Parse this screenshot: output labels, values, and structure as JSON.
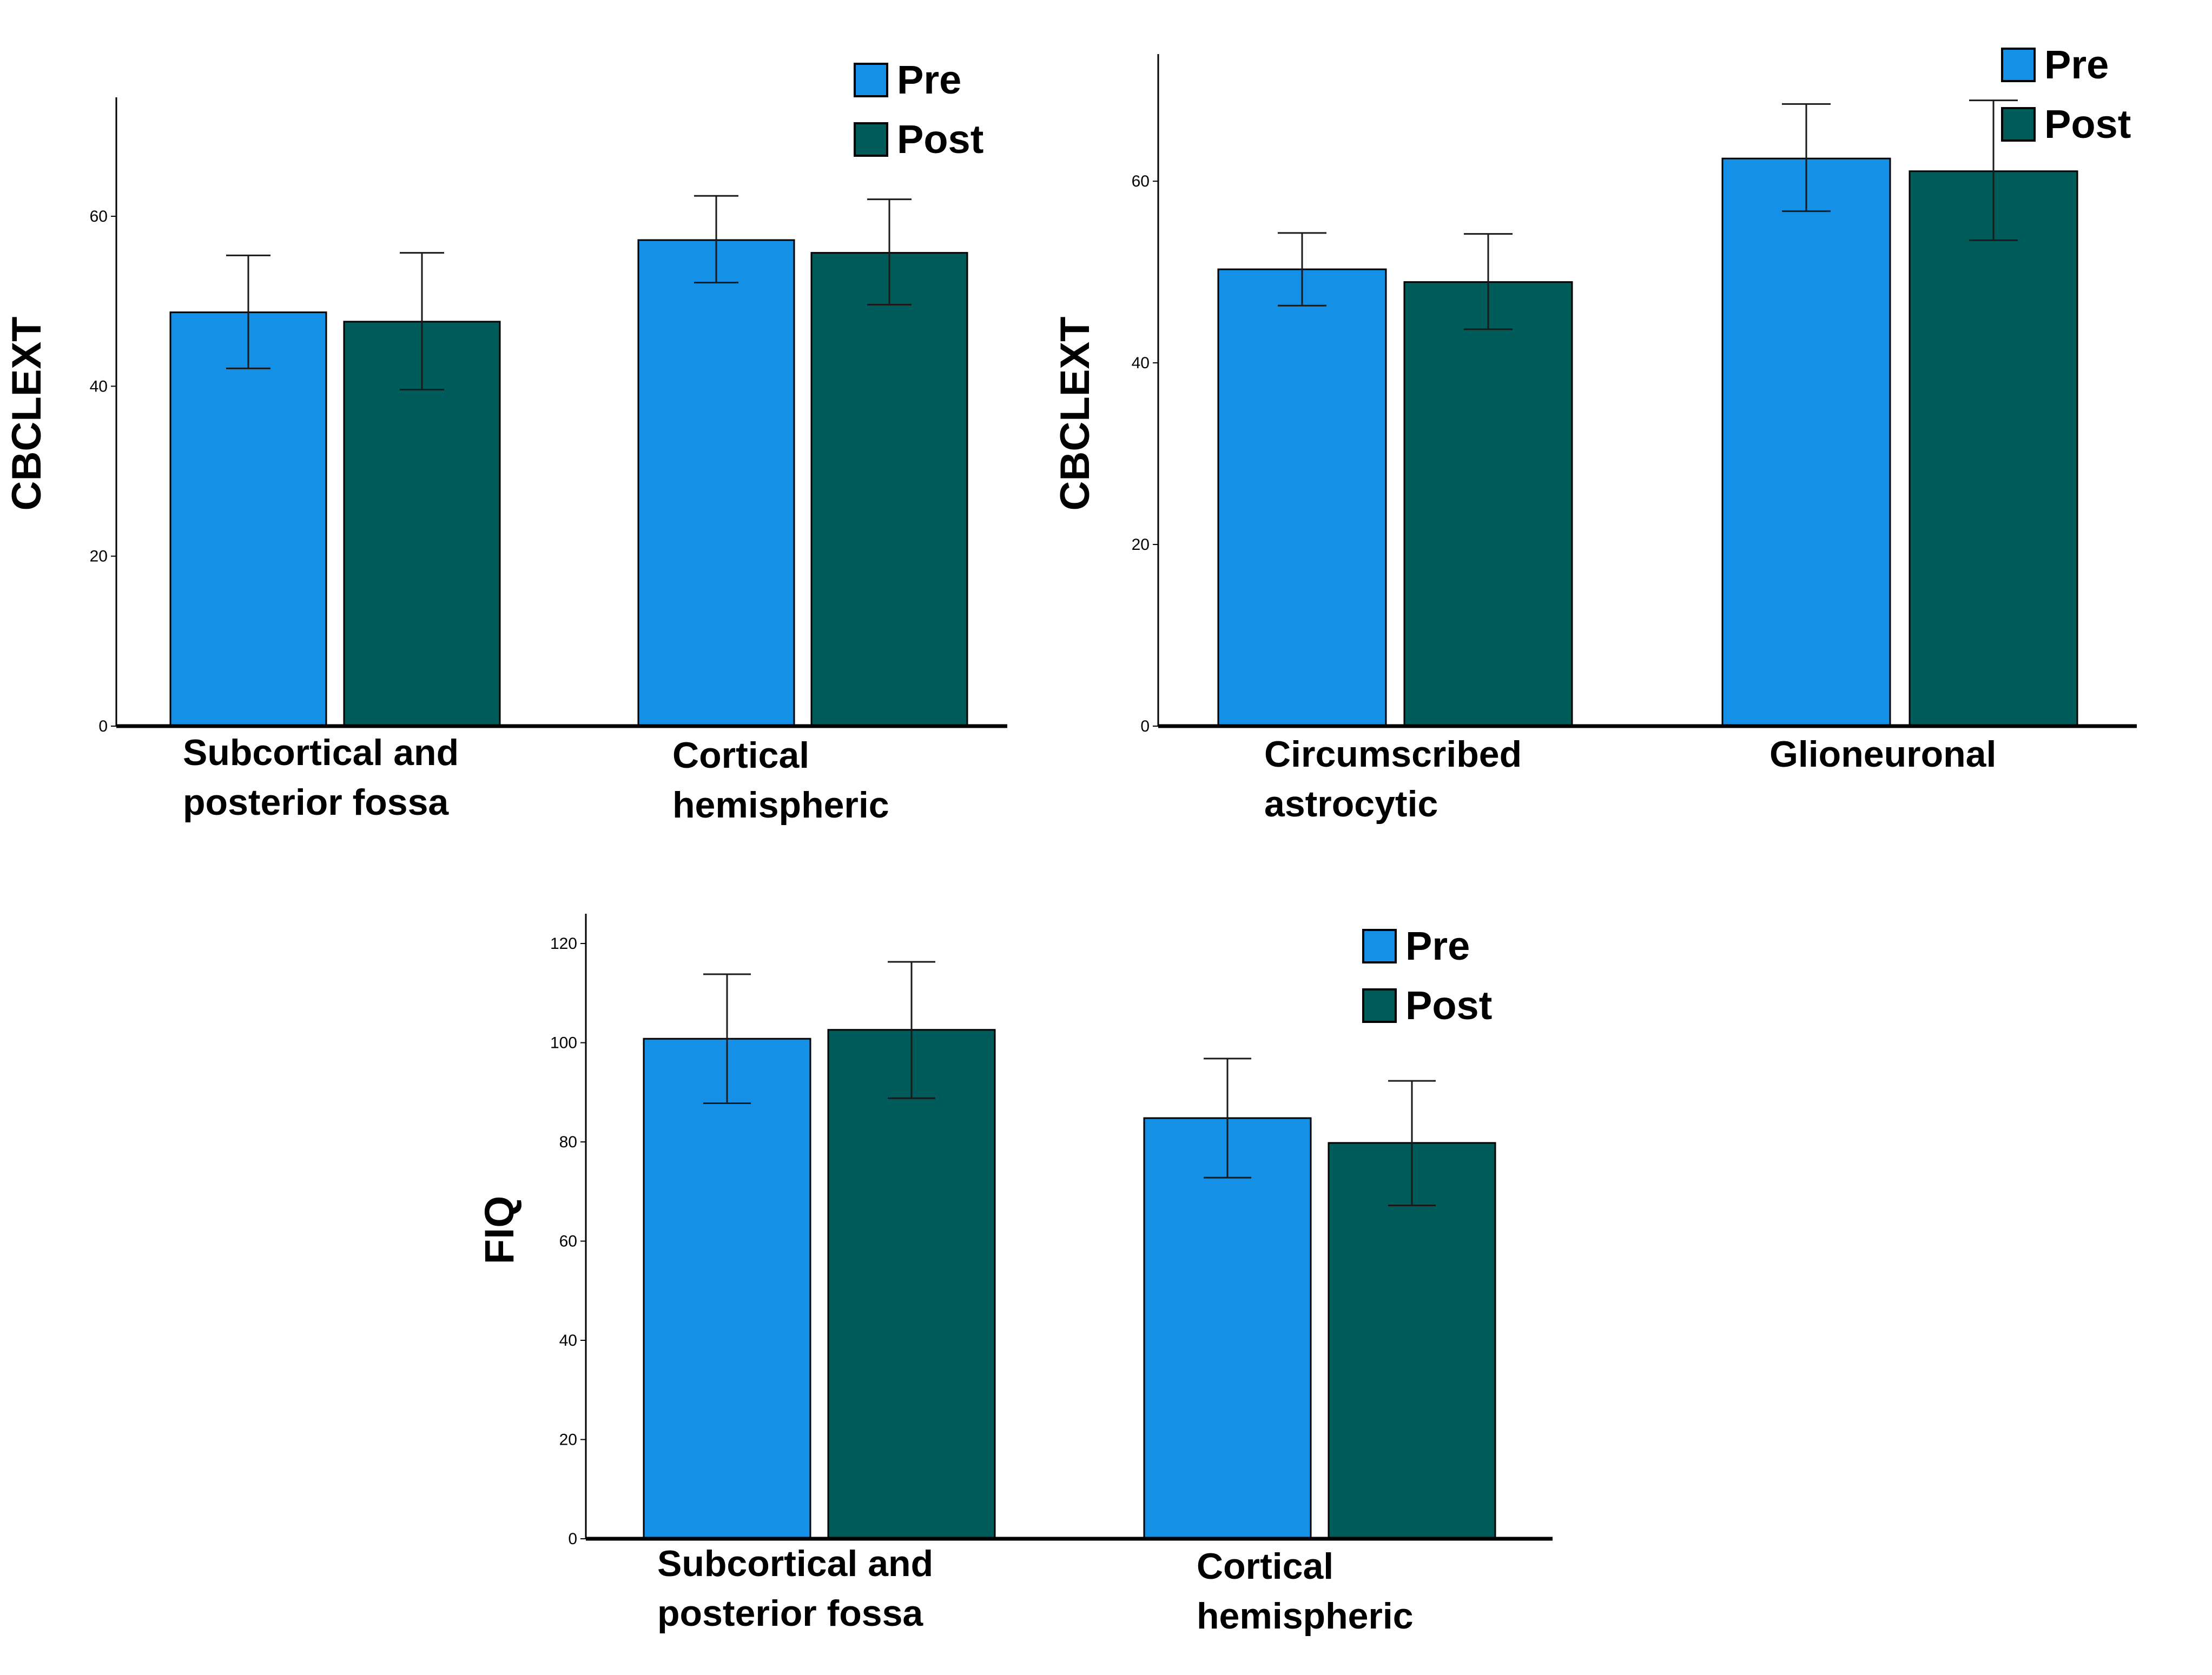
{
  "colors": {
    "pre": "#1490E6",
    "post": "#005C5A",
    "axis": "#000000",
    "error": "#1a1a1a"
  },
  "chart_data": [
    {
      "type": "bar",
      "ylabel": "CBCLEXT",
      "ylim": [
        0,
        74
      ],
      "yticks": [
        0,
        20,
        40,
        60
      ],
      "grid": false,
      "legend": [
        "Pre",
        "Post"
      ],
      "legend_position": "top-right",
      "categories": [
        [
          "Subcortical and",
          "posterior fossa"
        ],
        [
          "Cortical",
          "hemispheric"
        ]
      ],
      "series": [
        {
          "name": "Pre",
          "values": [
            48.7,
            57.2
          ],
          "error_low": [
            42.1,
            52.2
          ],
          "error_high": [
            55.4,
            62.4
          ]
        },
        {
          "name": "Post",
          "values": [
            47.6,
            55.7
          ],
          "error_low": [
            39.6,
            49.6
          ],
          "error_high": [
            55.7,
            62.0
          ]
        }
      ]
    },
    {
      "type": "bar",
      "ylabel": "CBCLEXT",
      "ylim": [
        0,
        74
      ],
      "yticks": [
        0,
        20,
        40,
        60
      ],
      "grid": false,
      "legend": [
        "Pre",
        "Post"
      ],
      "legend_position": "top-right",
      "categories": [
        [
          "Circumscribed",
          "astrocytic"
        ],
        [
          "Glioneuronal"
        ]
      ],
      "series": [
        {
          "name": "Pre",
          "values": [
            50.3,
            62.5
          ],
          "error_low": [
            46.3,
            56.7
          ],
          "error_high": [
            54.3,
            68.5
          ]
        },
        {
          "name": "Post",
          "values": [
            48.9,
            61.1
          ],
          "error_low": [
            43.7,
            53.5
          ],
          "error_high": [
            54.2,
            68.9
          ]
        }
      ]
    },
    {
      "type": "bar",
      "ylabel": "FIQ",
      "ylim": [
        0,
        126
      ],
      "yticks": [
        0,
        20,
        40,
        60,
        80,
        100,
        120
      ],
      "grid": false,
      "legend": [
        "Pre",
        "Post"
      ],
      "legend_position": "top-right",
      "categories": [
        [
          "Subcortical and",
          "posterior fossa"
        ],
        [
          "Cortical",
          "hemispheric"
        ]
      ],
      "series": [
        {
          "name": "Pre",
          "values": [
            100.8,
            84.8
          ],
          "error_low": [
            87.8,
            72.8
          ],
          "error_high": [
            113.8,
            96.8
          ]
        },
        {
          "name": "Post",
          "values": [
            102.6,
            79.8
          ],
          "error_low": [
            88.8,
            67.2
          ],
          "error_high": [
            116.3,
            92.3
          ]
        }
      ]
    }
  ]
}
